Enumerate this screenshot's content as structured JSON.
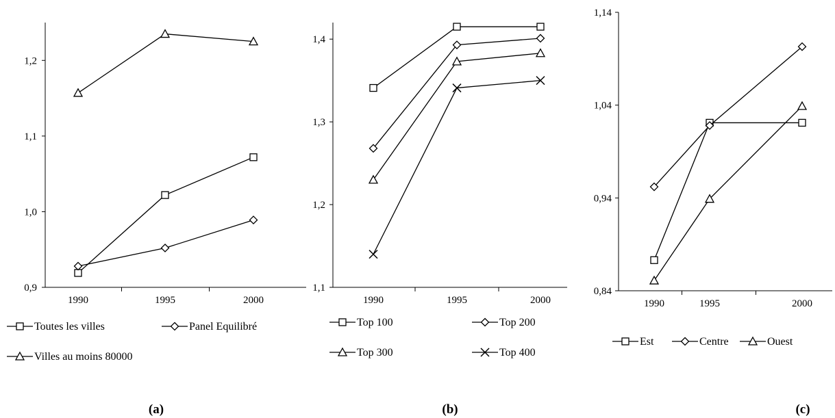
{
  "chart_data": [
    {
      "type": "line",
      "panel_label": "(a)",
      "x": [
        "1990",
        "1995",
        "2000"
      ],
      "ylim": [
        0.9,
        1.25
      ],
      "yticks": [
        "0,9",
        "1,0",
        "1,1",
        "1,2"
      ],
      "ytick_values": [
        0.9,
        1.0,
        1.1,
        1.2
      ],
      "grid": false,
      "legend_position": "bottom",
      "series": [
        {
          "name": "Toutes les villes",
          "marker": "square",
          "values": [
            0.919,
            1.022,
            1.072
          ]
        },
        {
          "name": "Panel Equilibré",
          "marker": "diamond",
          "values": [
            0.928,
            0.952,
            0.989
          ]
        },
        {
          "name": "Villes au moins 80000",
          "marker": "triangle",
          "values": [
            1.157,
            1.235,
            1.225
          ]
        }
      ]
    },
    {
      "type": "line",
      "panel_label": "(b)",
      "x": [
        "1990",
        "1995",
        "2000"
      ],
      "ylim": [
        1.1,
        1.42
      ],
      "yticks": [
        "1,1",
        "1,2",
        "1,3",
        "1,4"
      ],
      "ytick_values": [
        1.1,
        1.2,
        1.3,
        1.4
      ],
      "grid": false,
      "legend_position": "bottom",
      "series": [
        {
          "name": "Top 100",
          "marker": "square",
          "values": [
            1.341,
            1.415,
            1.415
          ]
        },
        {
          "name": "Top 200",
          "marker": "diamond",
          "values": [
            1.268,
            1.393,
            1.401
          ]
        },
        {
          "name": "Top 300",
          "marker": "triangle",
          "values": [
            1.23,
            1.373,
            1.383
          ]
        },
        {
          "name": "Top 400",
          "marker": "x",
          "values": [
            1.14,
            1.341,
            1.35
          ]
        }
      ]
    },
    {
      "type": "line",
      "panel_label": "(c)",
      "x": [
        "1990",
        "1995",
        "2000"
      ],
      "ylim": [
        0.84,
        1.14
      ],
      "yticks": [
        "0,84",
        "0,94",
        "1,04",
        "1,14"
      ],
      "ytick_values": [
        0.84,
        0.94,
        1.04,
        1.14
      ],
      "grid": false,
      "legend_position": "bottom",
      "series": [
        {
          "name": "Est",
          "marker": "square",
          "values": [
            0.873,
            1.021,
            1.021
          ]
        },
        {
          "name": "Centre",
          "marker": "diamond",
          "values": [
            0.952,
            1.018,
            1.103
          ]
        },
        {
          "name": "Ouest",
          "marker": "triangle",
          "values": [
            0.851,
            0.939,
            1.039
          ]
        }
      ]
    }
  ]
}
